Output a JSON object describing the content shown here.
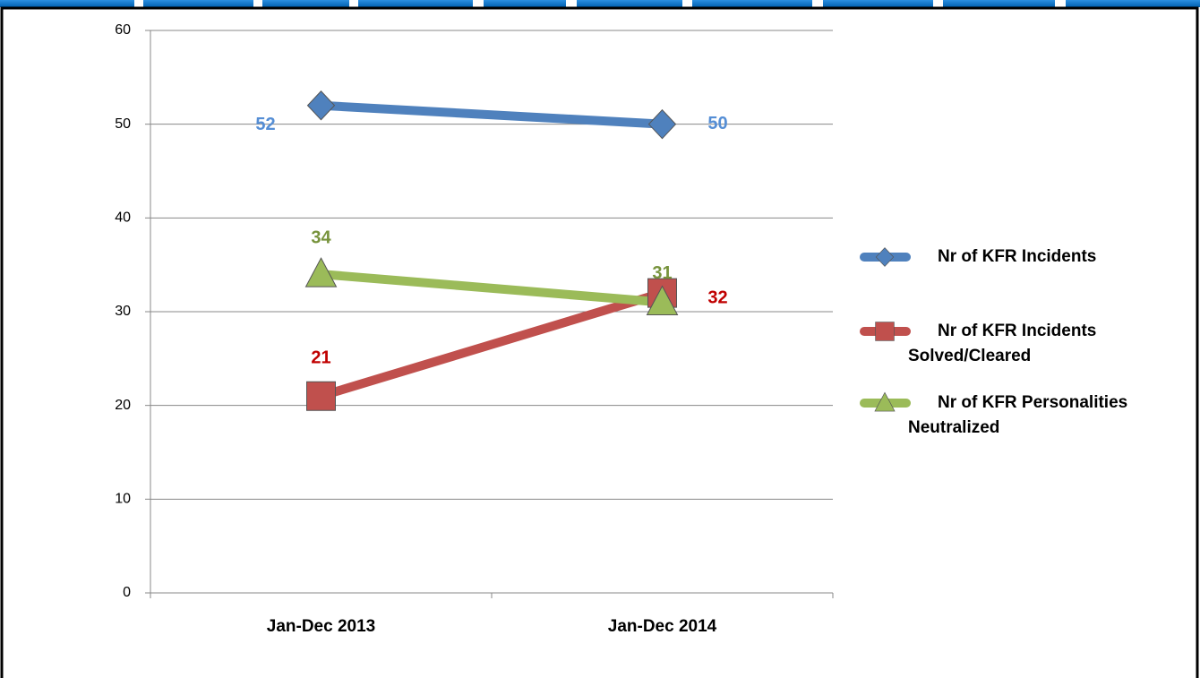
{
  "chart_data": {
    "type": "line",
    "categories": [
      "Jan-Dec 2013",
      "Jan-Dec 2014"
    ],
    "series": [
      {
        "name": "Nr of KFR Incidents",
        "color": "#4f81bd",
        "label_color": "#558ed5",
        "marker": "diamond",
        "values": [
          52,
          50
        ]
      },
      {
        "name": "Nr of KFR Incidents Solved/Cleared",
        "color": "#c0504d",
        "label_color": "#c00000",
        "marker": "square",
        "values": [
          21,
          32
        ]
      },
      {
        "name": "Nr of KFR Personalities Neutralized",
        "color": "#9bbb59",
        "label_color": "#77933c",
        "marker": "triangle",
        "values": [
          34,
          31
        ]
      }
    ],
    "ylim": [
      0,
      60
    ],
    "yticks": [
      0,
      10,
      20,
      30,
      40,
      50,
      60
    ],
    "grid": true,
    "legend": "right"
  }
}
